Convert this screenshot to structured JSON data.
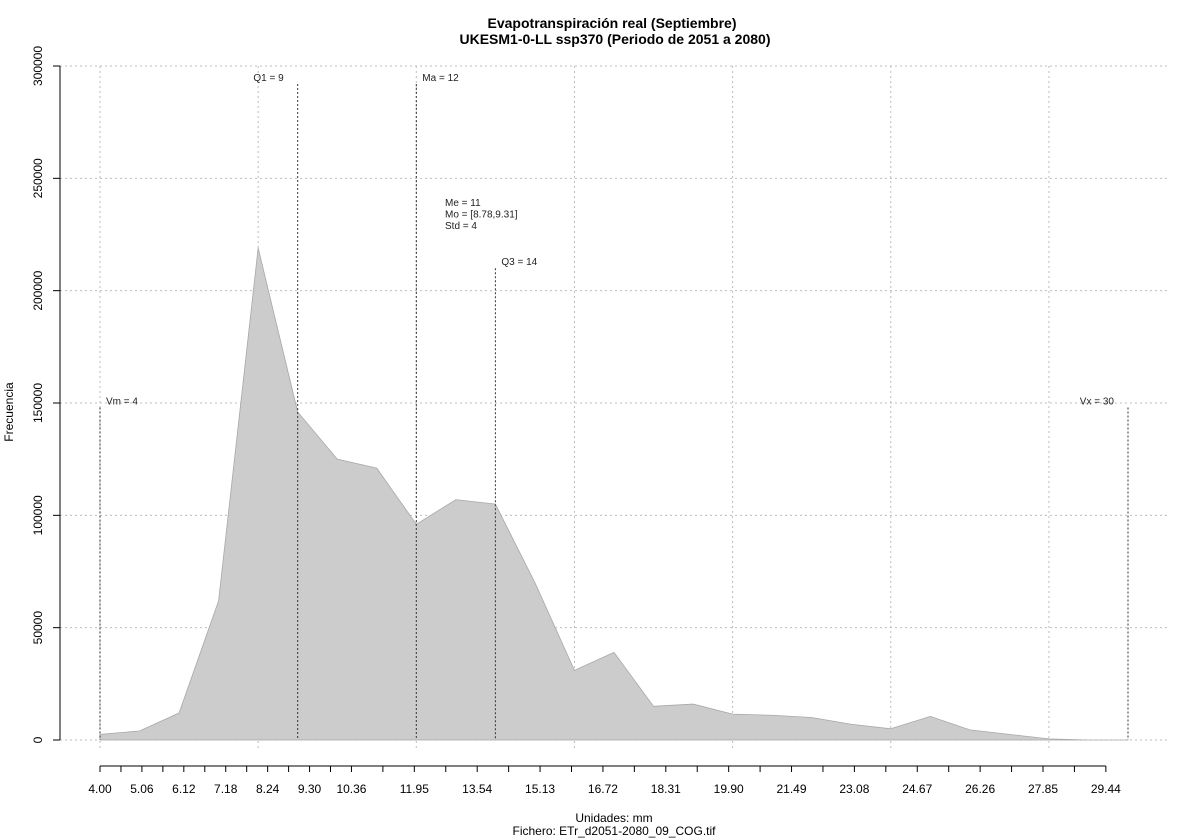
{
  "chart_data": {
    "type": "area",
    "title": "Evapotranspiración real (Septiembre)",
    "subtitle": "UKESM1-0-LL ssp370 (Periodo de 2051 a 2080)",
    "xlabel": "Unidades: mm",
    "ylabel": "Frecuencia",
    "footer": "Fichero: ETr_d2051-2080_09_COG.tif",
    "xlim": [
      4.0,
      30.0
    ],
    "ylim": [
      0,
      300000
    ],
    "grid": true,
    "x_ticks": [
      "4.00",
      "5.06",
      "6.12",
      "7.18",
      "8.24",
      "9.30",
      "10.36",
      "11.95",
      "13.54",
      "15.13",
      "16.72",
      "18.31",
      "19.90",
      "21.49",
      "23.08",
      "24.67",
      "26.26",
      "27.85",
      "29.44"
    ],
    "y_ticks": [
      "0",
      "50000",
      "100000",
      "150000",
      "200000",
      "250000",
      "300000"
    ],
    "x": [
      4.0,
      5.0,
      6.0,
      7.0,
      8.0,
      9.0,
      10.0,
      11.0,
      12.0,
      13.0,
      14.0,
      15.0,
      16.0,
      17.0,
      18.0,
      19.0,
      20.0,
      21.0,
      22.0,
      23.0,
      24.0,
      25.0,
      26.0,
      27.0,
      28.0,
      29.0,
      30.0
    ],
    "values": [
      2500,
      4000,
      12000,
      62000,
      219000,
      146000,
      125000,
      121000,
      96000,
      107000,
      105000,
      70000,
      31000,
      39000,
      15000,
      16000,
      11500,
      11000,
      10000,
      7000,
      5000,
      10500,
      4500,
      2500,
      500,
      0,
      0
    ],
    "annotations": [
      {
        "label": "Vm = 4",
        "x": 4,
        "line_top": 148000,
        "side": "right"
      },
      {
        "label": "Q1 = 9",
        "x": 9,
        "line_top": 292000,
        "side": "left"
      },
      {
        "label": "Ma = 12",
        "x": 12,
        "line_top": 292000,
        "side": "right"
      },
      {
        "label": "Q3 = 14",
        "x": 14,
        "line_top": 210000,
        "side": "right"
      },
      {
        "label": "Vx = 30",
        "x": 30,
        "line_top": 148000,
        "side": "left"
      }
    ],
    "stats": [
      "Me = 11",
      "Mo = [8.78,9.31]",
      "Std = 4"
    ]
  }
}
